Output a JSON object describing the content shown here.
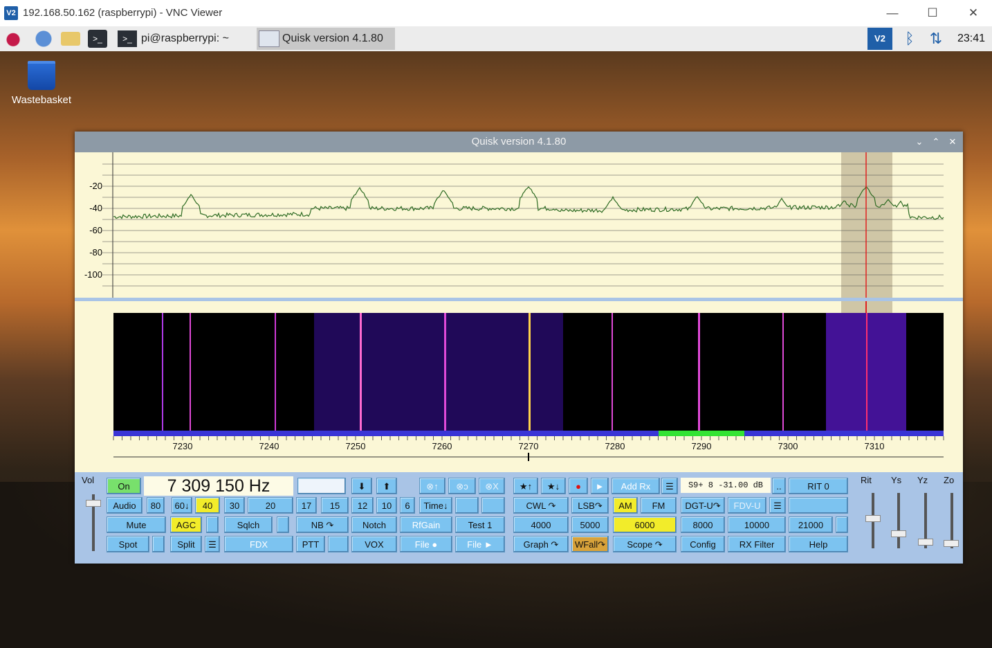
{
  "vnc": {
    "logo": "V2",
    "title": "192.168.50.162 (raspberrypi) - VNC Viewer",
    "minimize": "—",
    "maximize": "☐",
    "close": "✕"
  },
  "taskbar": {
    "terminal_task": "pi@raspberrypi: ~",
    "quisk_task": "Quisk version 4.1.80",
    "clock": "23:41"
  },
  "desktop": {
    "wastebasket": "Wastebasket"
  },
  "quisk": {
    "title": "Quisk version 4.1.80",
    "controls": [
      "⌄",
      "⌃",
      "✕"
    ],
    "graph": {
      "db_labels": [
        "-20",
        "-40",
        "-60",
        "-80",
        "-100"
      ],
      "freq_labels": [
        "7230",
        "7240",
        "7250",
        "7260",
        "7270",
        "7280",
        "7290",
        "7300",
        "7310"
      ]
    },
    "panel": {
      "vol_label": "Vol",
      "on": "On",
      "frequency": "7 309 150 Hz",
      "smeter": "S9+ 8  -31.00 dB",
      "slider_labels": [
        "Rit",
        "Ys",
        "Yz",
        "Zo"
      ],
      "row1": {
        "down": "⬇",
        "up": "⬆",
        "m1": "⊗↑",
        "m2": "⊗ↄ",
        "m3": "⊗X",
        "star_up": "★↑",
        "star_down": "★↓",
        "rec": "●",
        "play": "►",
        "add_rx": "Add Rx",
        "list": "☰",
        "dots": "..",
        "rit": "RIT 0"
      },
      "row2": [
        "Audio",
        "80",
        "60↓",
        "40",
        "30",
        "20",
        "17",
        "15",
        "12",
        "10",
        "6",
        "Time↓"
      ],
      "row2_modes": [
        "CWL ↷",
        "LSB↷",
        "AM",
        "FM",
        "DGT-U↷",
        "FDV-U",
        "☰"
      ],
      "row3": [
        "Mute",
        "AGC",
        "Sqlch",
        "NB ↷",
        "Notch",
        "RfGain",
        "Test 1"
      ],
      "row3_bw": [
        "4000",
        "5000",
        "6000",
        "8000",
        "10000",
        "21000"
      ],
      "row4": [
        "Spot",
        "Split",
        "FDX",
        "PTT",
        "VOX",
        "File ●",
        "File ►"
      ],
      "row4_right": [
        "Graph ↷",
        "WFall↷",
        "Scope ↷",
        "Config",
        "RX Filter",
        "Help"
      ]
    }
  },
  "colors": {
    "button": "#7cc3f0",
    "active": "#f2ec2a",
    "on": "#78e06c",
    "panel": "#a9c4e6",
    "graph_bg": "#fbf7d6",
    "trace": "#2e6b23",
    "tuning": "#e02020"
  }
}
